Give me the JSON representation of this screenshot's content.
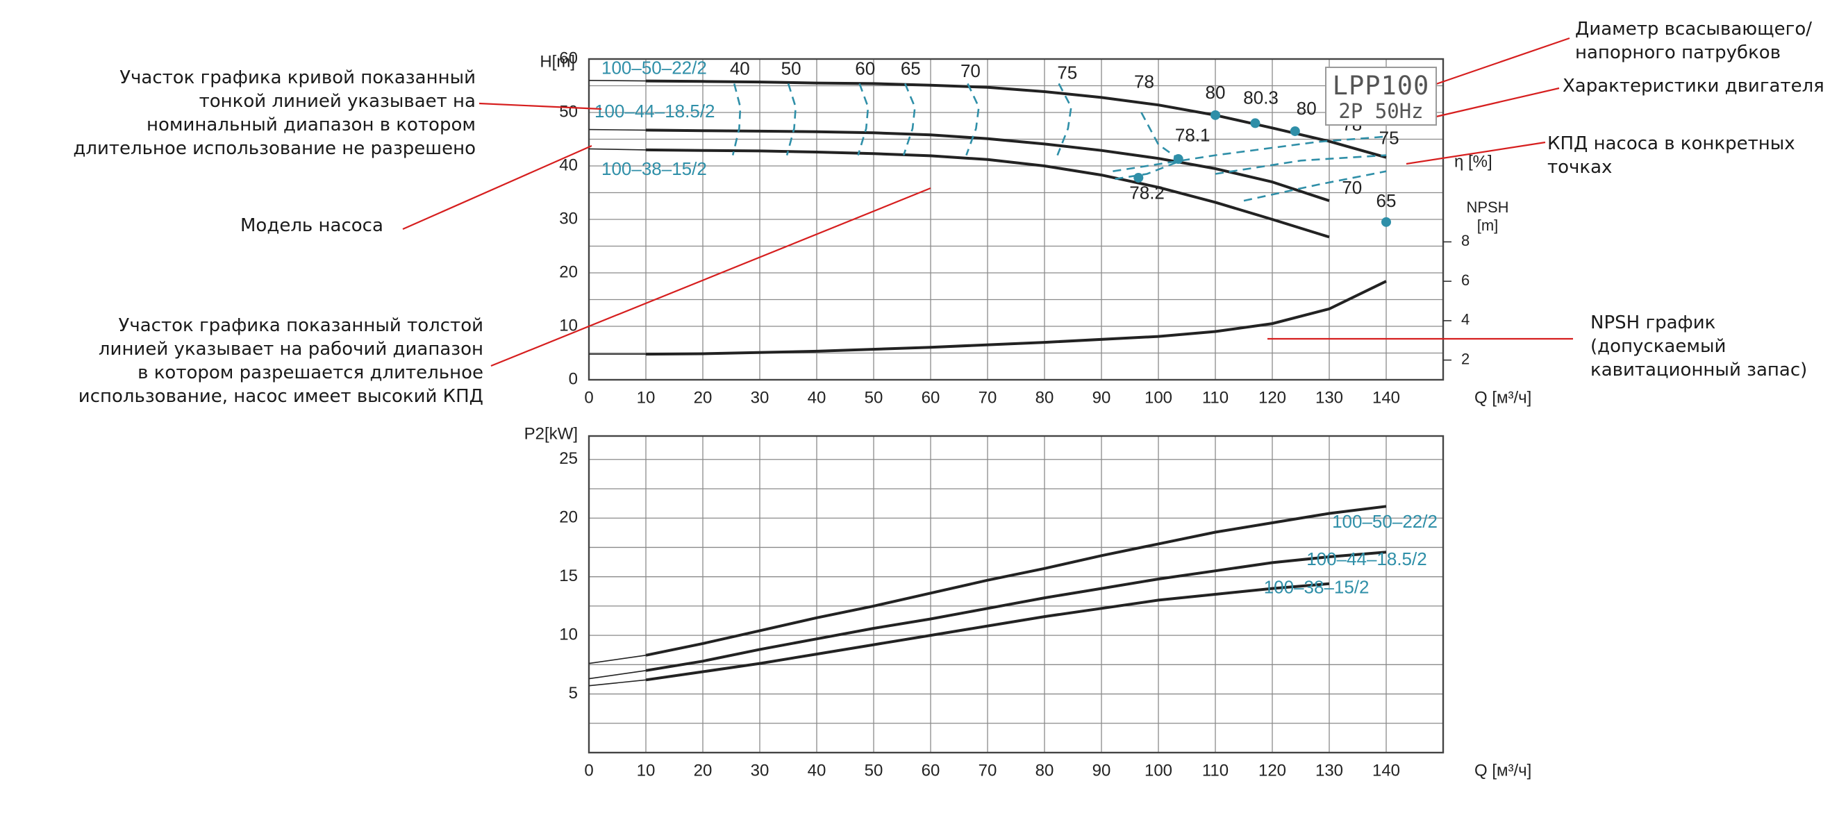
{
  "chart_data": [
    {
      "type": "line",
      "title": "",
      "xlabel": "Q [м³/ч]",
      "ylabel": "H[m]",
      "xlim": [
        0,
        150
      ],
      "ylim": [
        0,
        60
      ],
      "grid": true,
      "x_ticks": [
        "0",
        "10",
        "20",
        "30",
        "40",
        "50",
        "60",
        "70",
        "80",
        "90",
        "100",
        "110",
        "120",
        "130",
        "140"
      ],
      "y_ticks": [
        "0",
        "10",
        "20",
        "30",
        "40",
        "50",
        "60"
      ],
      "series": [
        {
          "name": "100–50–22/2",
          "color": "#222222",
          "x": [
            0,
            10,
            20,
            30,
            40,
            50,
            60,
            70,
            80,
            90,
            100,
            110,
            120,
            130,
            140
          ],
          "y": [
            56,
            55.9,
            55.8,
            55.7,
            55.5,
            55.4,
            55.1,
            54.7,
            53.9,
            52.8,
            51.4,
            49.5,
            47.1,
            44.6,
            41.6
          ]
        },
        {
          "name": "100–44–18.5/2",
          "color": "#222222",
          "x": [
            0,
            10,
            20,
            30,
            40,
            50,
            60,
            70,
            80,
            90,
            100,
            110,
            120,
            130
          ],
          "y": [
            46.8,
            46.7,
            46.6,
            46.5,
            46.4,
            46.2,
            45.8,
            45.1,
            44.1,
            42.9,
            41.4,
            39.5,
            37,
            33.5
          ]
        },
        {
          "name": "100–38–15/2",
          "color": "#222222",
          "x": [
            0,
            10,
            20,
            30,
            40,
            50,
            60,
            70,
            80,
            90,
            100,
            110,
            120,
            130
          ],
          "y": [
            43.2,
            43,
            42.9,
            42.8,
            42.6,
            42.3,
            41.9,
            41.2,
            40,
            38.3,
            36,
            33.2,
            30,
            26.7
          ]
        }
      ],
      "thin_range_end_x": 11,
      "series_labels": [
        "100–50–22/2",
        "100–44–18.5/2",
        "100–38–15/2"
      ],
      "efficiency_labels": [
        "40",
        "50",
        "60",
        "65",
        "70",
        "75",
        "78",
        "80",
        "80.3",
        "80",
        "78",
        "75",
        "78.1",
        "78.2",
        "70",
        "65"
      ],
      "efficiency_points": [
        {
          "label": "80",
          "x": 110,
          "y": 49.5
        },
        {
          "label": "80.3",
          "x": 117,
          "y": 48
        },
        {
          "label": "80",
          "x": 124,
          "y": 46.5
        },
        {
          "label": "78.1",
          "x": 103.5,
          "y": 41.3
        },
        {
          "label": "78.2",
          "x": 96.5,
          "y": 37.8
        },
        {
          "label": "65",
          "x": 140,
          "y": 29.5
        }
      ],
      "efficiency_axis_label": "η [%]",
      "badge": {
        "line1": "LPP100",
        "line2": "2P 50Hz"
      }
    },
    {
      "type": "line",
      "title": "",
      "xlabel": "Q [м³/ч]",
      "ylabel": "NPSH [m]",
      "ylim": [
        1,
        9
      ],
      "y_ticks": [
        "2",
        "4",
        "6",
        "8"
      ],
      "series": [
        {
          "name": "NPSH",
          "color": "#222222",
          "x": [
            0,
            10,
            20,
            40,
            60,
            80,
            100,
            110,
            120,
            130,
            140
          ],
          "y": [
            2.3,
            2.3,
            2.32,
            2.45,
            2.65,
            2.9,
            3.2,
            3.45,
            3.85,
            4.6,
            6
          ]
        }
      ]
    },
    {
      "type": "line",
      "title": "",
      "xlabel": "Q [м³/ч]",
      "ylabel": "P2[kW]",
      "xlim": [
        0,
        150
      ],
      "ylim": [
        0,
        27
      ],
      "grid": true,
      "x_ticks": [
        "0",
        "10",
        "20",
        "30",
        "40",
        "50",
        "60",
        "70",
        "80",
        "90",
        "100",
        "110",
        "120",
        "130",
        "140"
      ],
      "y_ticks": [
        "5",
        "10",
        "15",
        "20",
        "25"
      ],
      "series": [
        {
          "name": "100–50–22/2",
          "color": "#222222",
          "x": [
            0,
            10,
            20,
            30,
            40,
            50,
            60,
            70,
            80,
            90,
            100,
            110,
            120,
            130,
            140
          ],
          "y": [
            7.6,
            8.3,
            9.3,
            10.4,
            11.5,
            12.5,
            13.6,
            14.7,
            15.7,
            16.8,
            17.8,
            18.8,
            19.6,
            20.4,
            21
          ]
        },
        {
          "name": "100–44–18.5/2",
          "color": "#222222",
          "x": [
            0,
            10,
            20,
            30,
            40,
            50,
            60,
            70,
            80,
            90,
            100,
            110,
            120,
            130,
            140
          ],
          "y": [
            6.3,
            7,
            7.8,
            8.8,
            9.7,
            10.6,
            11.4,
            12.3,
            13.2,
            14,
            14.8,
            15.5,
            16.2,
            16.7,
            17.1
          ]
        },
        {
          "name": "100–38–15/2",
          "color": "#222222",
          "x": [
            0,
            10,
            20,
            30,
            40,
            50,
            60,
            70,
            80,
            90,
            100,
            110,
            120,
            130
          ],
          "y": [
            5.7,
            6.2,
            6.9,
            7.6,
            8.4,
            9.2,
            10,
            10.8,
            11.6,
            12.3,
            13,
            13.5,
            14,
            14.4
          ]
        }
      ],
      "series_labels": [
        "100–50–22/2",
        "100–44–18.5/2",
        "100–38–15/2"
      ]
    }
  ],
  "annotations": {
    "thin_line": [
      "Участок графика кривой показанный",
      "тонкой линией указывает на",
      "номинальный диапазон в котором",
      "длительное использование не разрешено"
    ],
    "model": "Модель насоса",
    "thick_line": [
      "Участок графика показанный толстой",
      "линией указывает на рабочий диапазон",
      "в котором разрешается длительное",
      "использование, насос имеет высокий КПД"
    ],
    "diameter": [
      "Диаметр всасывающего/",
      "напорного патрубков"
    ],
    "motor": "Характеристики двигателя",
    "efficiency": "КПД насоса в конкретных точках",
    "npsh": [
      "NPSH график (допускаемый",
      "кавитационный запас)"
    ]
  },
  "colors": {
    "curve": "#222222",
    "efficiency": "#2f8fa8",
    "leader": "#d61e1e",
    "grid": "#8a8a8a"
  }
}
